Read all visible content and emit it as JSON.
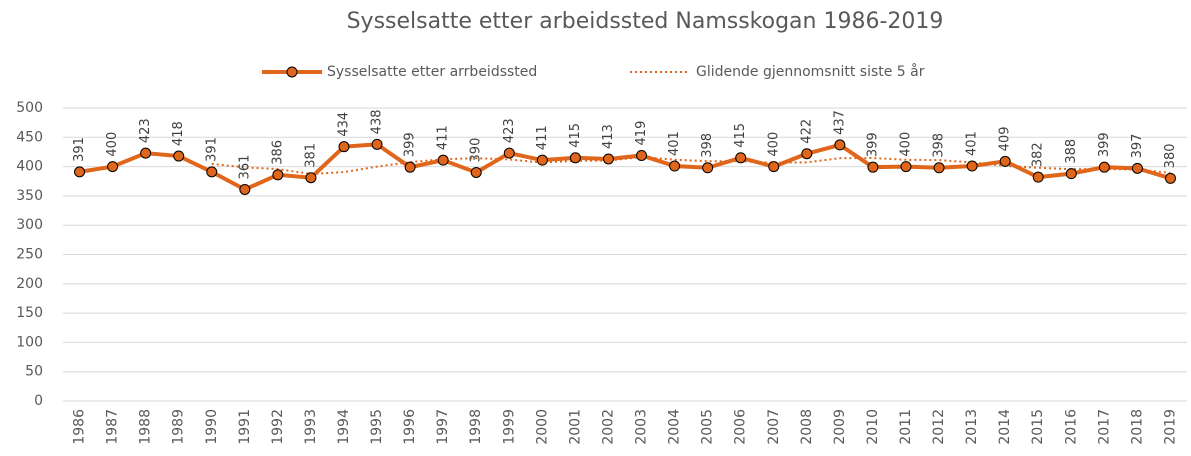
{
  "chart_data": {
    "type": "line",
    "title": "Sysselsatte etter arbeidssted Namsskogan 1986-2019",
    "categories": [
      "1986",
      "1987",
      "1988",
      "1989",
      "1990",
      "1991",
      "1992",
      "1993",
      "1994",
      "1995",
      "1996",
      "1997",
      "1998",
      "1999",
      "2000",
      "2001",
      "2002",
      "2003",
      "2004",
      "2005",
      "2006",
      "2007",
      "2008",
      "2009",
      "2010",
      "2011",
      "2012",
      "2013",
      "2014",
      "2015",
      "2016",
      "2017",
      "2018",
      "2019"
    ],
    "series": [
      {
        "name": "Sysselsatte etter arrbeidssted",
        "color": "#e0661b",
        "values": [
          391,
          400,
          423,
          418,
          391,
          361,
          386,
          381,
          434,
          438,
          399,
          411,
          390,
          423,
          411,
          415,
          413,
          419,
          401,
          398,
          415,
          400,
          422,
          437,
          399,
          400,
          398,
          401,
          409,
          382,
          388,
          399,
          397,
          380
        ]
      },
      {
        "name": "Glidende gjennomsnitt siste 5 år",
        "color": "#e0661b",
        "values": [
          null,
          null,
          null,
          null,
          404.6,
          398.6,
          395.8,
          387.4,
          390.6,
          400,
          407.6,
          412.6,
          414.4,
          412.2,
          406.8,
          410,
          410.4,
          416.2,
          411.8,
          409.2,
          409.2,
          406.6,
          407.2,
          414.4,
          414.6,
          411.6,
          411.2,
          407,
          401.4,
          398,
          395.6,
          395.8,
          395,
          389.2
        ]
      }
    ],
    "ylim": [
      0,
      500
    ],
    "yticks": [
      0,
      50,
      100,
      150,
      200,
      250,
      300,
      350,
      400,
      450,
      500
    ],
    "grid": true
  }
}
